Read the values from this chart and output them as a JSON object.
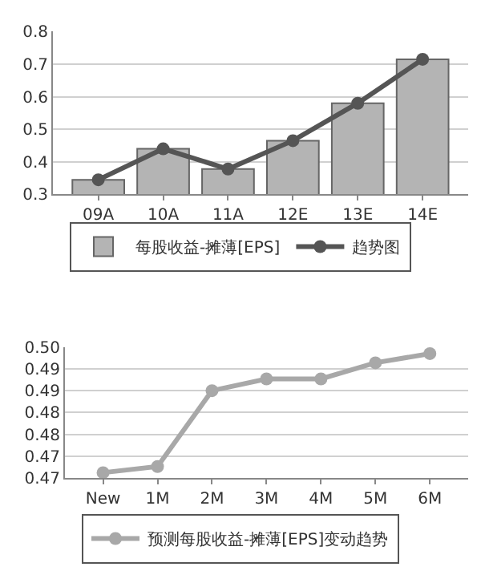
{
  "chart_data": [
    {
      "type": "bar",
      "categories": [
        "09A",
        "10A",
        "11A",
        "12E",
        "13E",
        "14E"
      ],
      "series": [
        {
          "name": "每股收益-摊薄[EPS]",
          "type": "bar",
          "color": "#b4b4b4",
          "values": [
            0.345,
            0.44,
            0.378,
            0.465,
            0.58,
            0.715
          ]
        },
        {
          "name": "趋势图",
          "type": "line",
          "color": "#555555",
          "values": [
            0.345,
            0.44,
            0.378,
            0.465,
            0.58,
            0.715
          ]
        }
      ],
      "ylim": [
        0.3,
        0.8
      ],
      "yticks": [
        0.3,
        0.4,
        0.5,
        0.6,
        0.7,
        0.8
      ],
      "grid": "y",
      "legend": "bottom",
      "marker": "circle",
      "line_style": "solid"
    },
    {
      "type": "line",
      "categories": [
        "New",
        "1M",
        "2M",
        "3M",
        "4M",
        "5M",
        "6M"
      ],
      "series": [
        {
          "name": "预测每股收益-摊薄[EPS]变动趋势",
          "color": "#a8a8a8",
          "values": [
            0.4712,
            0.4726,
            0.49,
            0.4927,
            0.4927,
            0.4964,
            0.4985
          ]
        }
      ],
      "ylim": [
        0.47,
        0.5
      ],
      "yticks": [
        {
          "value": 0.47,
          "label": "0.47"
        },
        {
          "value": 0.475,
          "label": "0.47"
        },
        {
          "value": 0.48,
          "label": "0.48"
        },
        {
          "value": 0.485,
          "label": "0.48"
        },
        {
          "value": 0.49,
          "label": "0.49"
        },
        {
          "value": 0.495,
          "label": "0.49"
        },
        {
          "value": 0.5,
          "label": "0.50"
        }
      ],
      "grid": "y",
      "legend": "bottom",
      "marker": "circle",
      "line_style": "solid"
    }
  ]
}
